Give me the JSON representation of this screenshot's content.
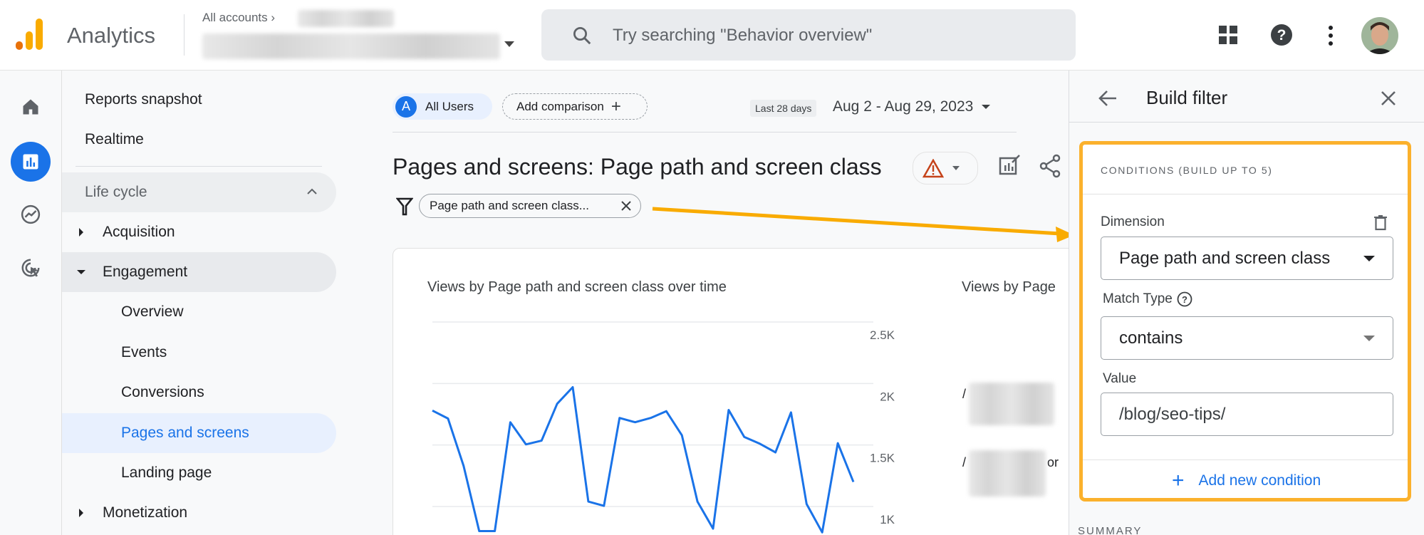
{
  "header": {
    "app_title": "Analytics",
    "breadcrumb": "All accounts",
    "search_placeholder": "Try searching \"Behavior overview\"",
    "brand_colors": {
      "logo_orange": "#e8710a",
      "logo_yellow": "#f9ab00"
    }
  },
  "rail": {
    "icons": [
      "home-icon",
      "reports-icon",
      "explore-icon",
      "advertising-icon"
    ],
    "active": "reports-icon",
    "accent": "#1a73e8"
  },
  "nav": {
    "reports_snapshot": "Reports snapshot",
    "realtime": "Realtime",
    "section": "Life cycle",
    "items": [
      {
        "label": "Acquisition"
      },
      {
        "label": "Engagement"
      },
      {
        "label": "Overview"
      },
      {
        "label": "Events"
      },
      {
        "label": "Conversions"
      },
      {
        "label": "Pages and screens"
      },
      {
        "label": "Landing page"
      },
      {
        "label": "Monetization"
      }
    ],
    "active_item": "Pages and screens"
  },
  "main": {
    "segment_initial": "A",
    "segment_label": "All Users",
    "add_comparison": "Add comparison",
    "date_badge": "Last 28 days",
    "date_range": "Aug 2 - Aug 29, 2023",
    "title": "Pages and screens: Page path and screen class",
    "filter_chip": "Page path and screen class...",
    "card_title_left": "Views by Page path and screen class over time",
    "card_title_right": "Views by Page",
    "right_row_fragments": [
      "/",
      "/",
      "or"
    ]
  },
  "chart_data": {
    "type": "line",
    "title": "Views by Page path and screen class over time",
    "y_ticks": [
      {
        "label": "2.5K",
        "value": 2500
      },
      {
        "label": "2K",
        "value": 2000
      },
      {
        "label": "1.5K",
        "value": 1500
      },
      {
        "label": "1K",
        "value": 1000
      }
    ],
    "ylim": [
      1000,
      2500
    ],
    "grid": true,
    "color": "#1a73e8",
    "values": [
      1780,
      1715,
      1330,
      800,
      800,
      1685,
      1505,
      1535,
      1835,
      1970,
      1040,
      1005,
      1720,
      1685,
      1720,
      1775,
      1580,
      1040,
      820,
      1785,
      1565,
      1510,
      1440,
      1765,
      1020,
      790,
      1515,
      1200
    ]
  },
  "panel": {
    "title": "Build filter",
    "conditions_heading": "CONDITIONS (BUILD UP TO 5)",
    "dimension_label": "Dimension",
    "dimension_value": "Page path and screen class",
    "match_type_label": "Match Type",
    "match_type_value": "contains",
    "value_label": "Value",
    "value_input": "/blog/seo-tips/",
    "add_condition": "Add new condition",
    "summary_heading": "SUMMARY",
    "highlight_color": "#fbb12c"
  }
}
